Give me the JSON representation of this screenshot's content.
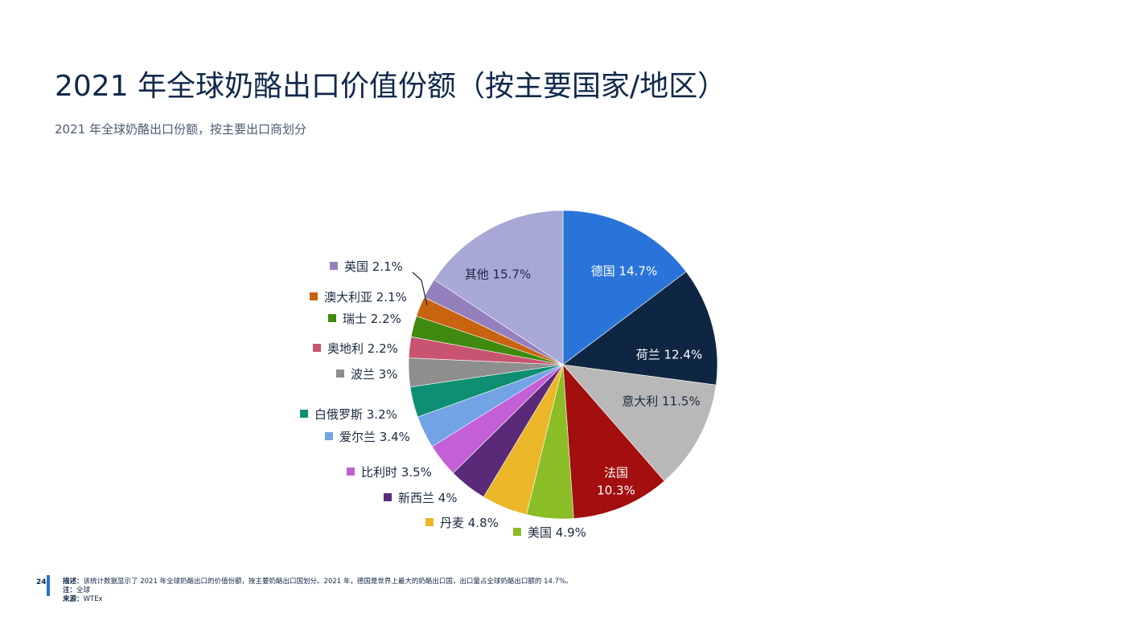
{
  "header": {
    "title": "2021 年全球奶酪出口价值份额（按主要国家/地区）",
    "subtitle": "2021 年全球奶酪出口份额，按主要出口商划分"
  },
  "chart_data": {
    "type": "pie",
    "title": "",
    "slices": [
      {
        "label": "德国",
        "value": 14.7,
        "display": "德国 14.7%",
        "color": "#2a74d9",
        "label_position": "inside",
        "text_color": "#ffffff"
      },
      {
        "label": "荷兰",
        "value": 12.4,
        "display": "荷兰 12.4%",
        "color": "#0f2642",
        "label_position": "inside",
        "text_color": "#ffffff"
      },
      {
        "label": "意大利",
        "value": 11.5,
        "display": "意大利 11.5%",
        "color": "#b8b8b8",
        "label_position": "inside",
        "text_color": "#1a2a40"
      },
      {
        "label": "法国",
        "value": 10.3,
        "display_lines": [
          "法国",
          "10.3%"
        ],
        "color": "#a30e0e",
        "label_position": "inside",
        "text_color": "#ffffff"
      },
      {
        "label": "美国",
        "value": 4.9,
        "display": "美国 4.9%",
        "color": "#8bbd26",
        "label_position": "outside"
      },
      {
        "label": "丹麦",
        "value": 4.8,
        "display": "丹麦 4.8%",
        "color": "#ebb627",
        "label_position": "outside"
      },
      {
        "label": "新西兰",
        "value": 4.0,
        "display": "新西兰 4%",
        "color": "#5a2a78",
        "label_position": "outside"
      },
      {
        "label": "比利时",
        "value": 3.5,
        "display": "比利时 3.5%",
        "color": "#c45fd6",
        "label_position": "outside"
      },
      {
        "label": "爱尔兰",
        "value": 3.4,
        "display": "爱尔兰 3.4%",
        "color": "#71a3e5",
        "label_position": "outside"
      },
      {
        "label": "白俄罗斯",
        "value": 3.2,
        "display": "白俄罗斯 3.2%",
        "color": "#0e8f73",
        "label_position": "outside"
      },
      {
        "label": "波兰",
        "value": 3.0,
        "display": "波兰 3%",
        "color": "#8e8e8e",
        "label_position": "outside"
      },
      {
        "label": "奥地利",
        "value": 2.2,
        "display": "奥地利 2.2%",
        "color": "#c9546f",
        "label_position": "outside"
      },
      {
        "label": "瑞士",
        "value": 2.2,
        "display": "瑞士 2.2%",
        "color": "#3f8a0e",
        "label_position": "outside"
      },
      {
        "label": "澳大利亚",
        "value": 2.1,
        "display": "澳大利亚 2.1%",
        "color": "#c8630f",
        "label_position": "outside"
      },
      {
        "label": "英国",
        "value": 2.1,
        "display": "英国 2.1%",
        "color": "#9480bd",
        "label_position": "outside"
      },
      {
        "label": "其他",
        "value": 15.7,
        "display": "其他 15.7%",
        "color": "#a8a8d6",
        "label_position": "inside",
        "text_color": "#1a2a40"
      }
    ]
  },
  "footer": {
    "page_number": "24",
    "description_label": "描述：",
    "description_text": "该统计数据显示了 2021 年全球奶酪出口的价值份额，按主要奶酪出口国划分。2021 年，德国是世界上最大的奶酪出口国，出口量占全球奶酪出口额的 14.7%。",
    "note_label": "注：",
    "note_text": "全球",
    "source_label": "来源：",
    "source_text": "WTEx"
  },
  "colors": {
    "accent": "#2a6fdb",
    "title": "#10294a"
  }
}
